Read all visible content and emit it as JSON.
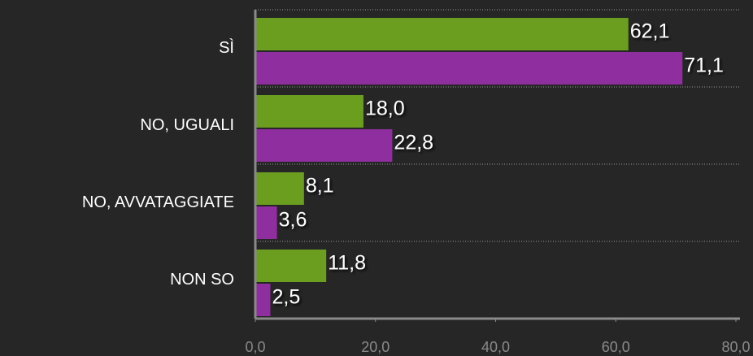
{
  "chart_data": {
    "type": "hbar",
    "categories": [
      "SÌ",
      "NO, UGUALI",
      "NO, AVVATAGGIATE",
      "NON SO"
    ],
    "series": [
      {
        "color": "#6b9e1f",
        "values": [
          62.1,
          18.0,
          8.1,
          11.8
        ],
        "value_labels": [
          "62,1",
          "18,0",
          "8,1",
          "11,8"
        ]
      },
      {
        "color": "#8f2e9f",
        "values": [
          71.1,
          22.8,
          3.6,
          2.5
        ],
        "value_labels": [
          "71,1",
          "22,8",
          "3,6",
          "2,5"
        ]
      }
    ],
    "xlim": [
      0,
      80
    ],
    "xticks": [
      {
        "value": 0,
        "label": "0,0"
      },
      {
        "value": 20,
        "label": "20,0"
      },
      {
        "value": 40,
        "label": "40,0"
      },
      {
        "value": 60,
        "label": "60,0"
      },
      {
        "value": 80,
        "label": "80,0"
      }
    ]
  }
}
